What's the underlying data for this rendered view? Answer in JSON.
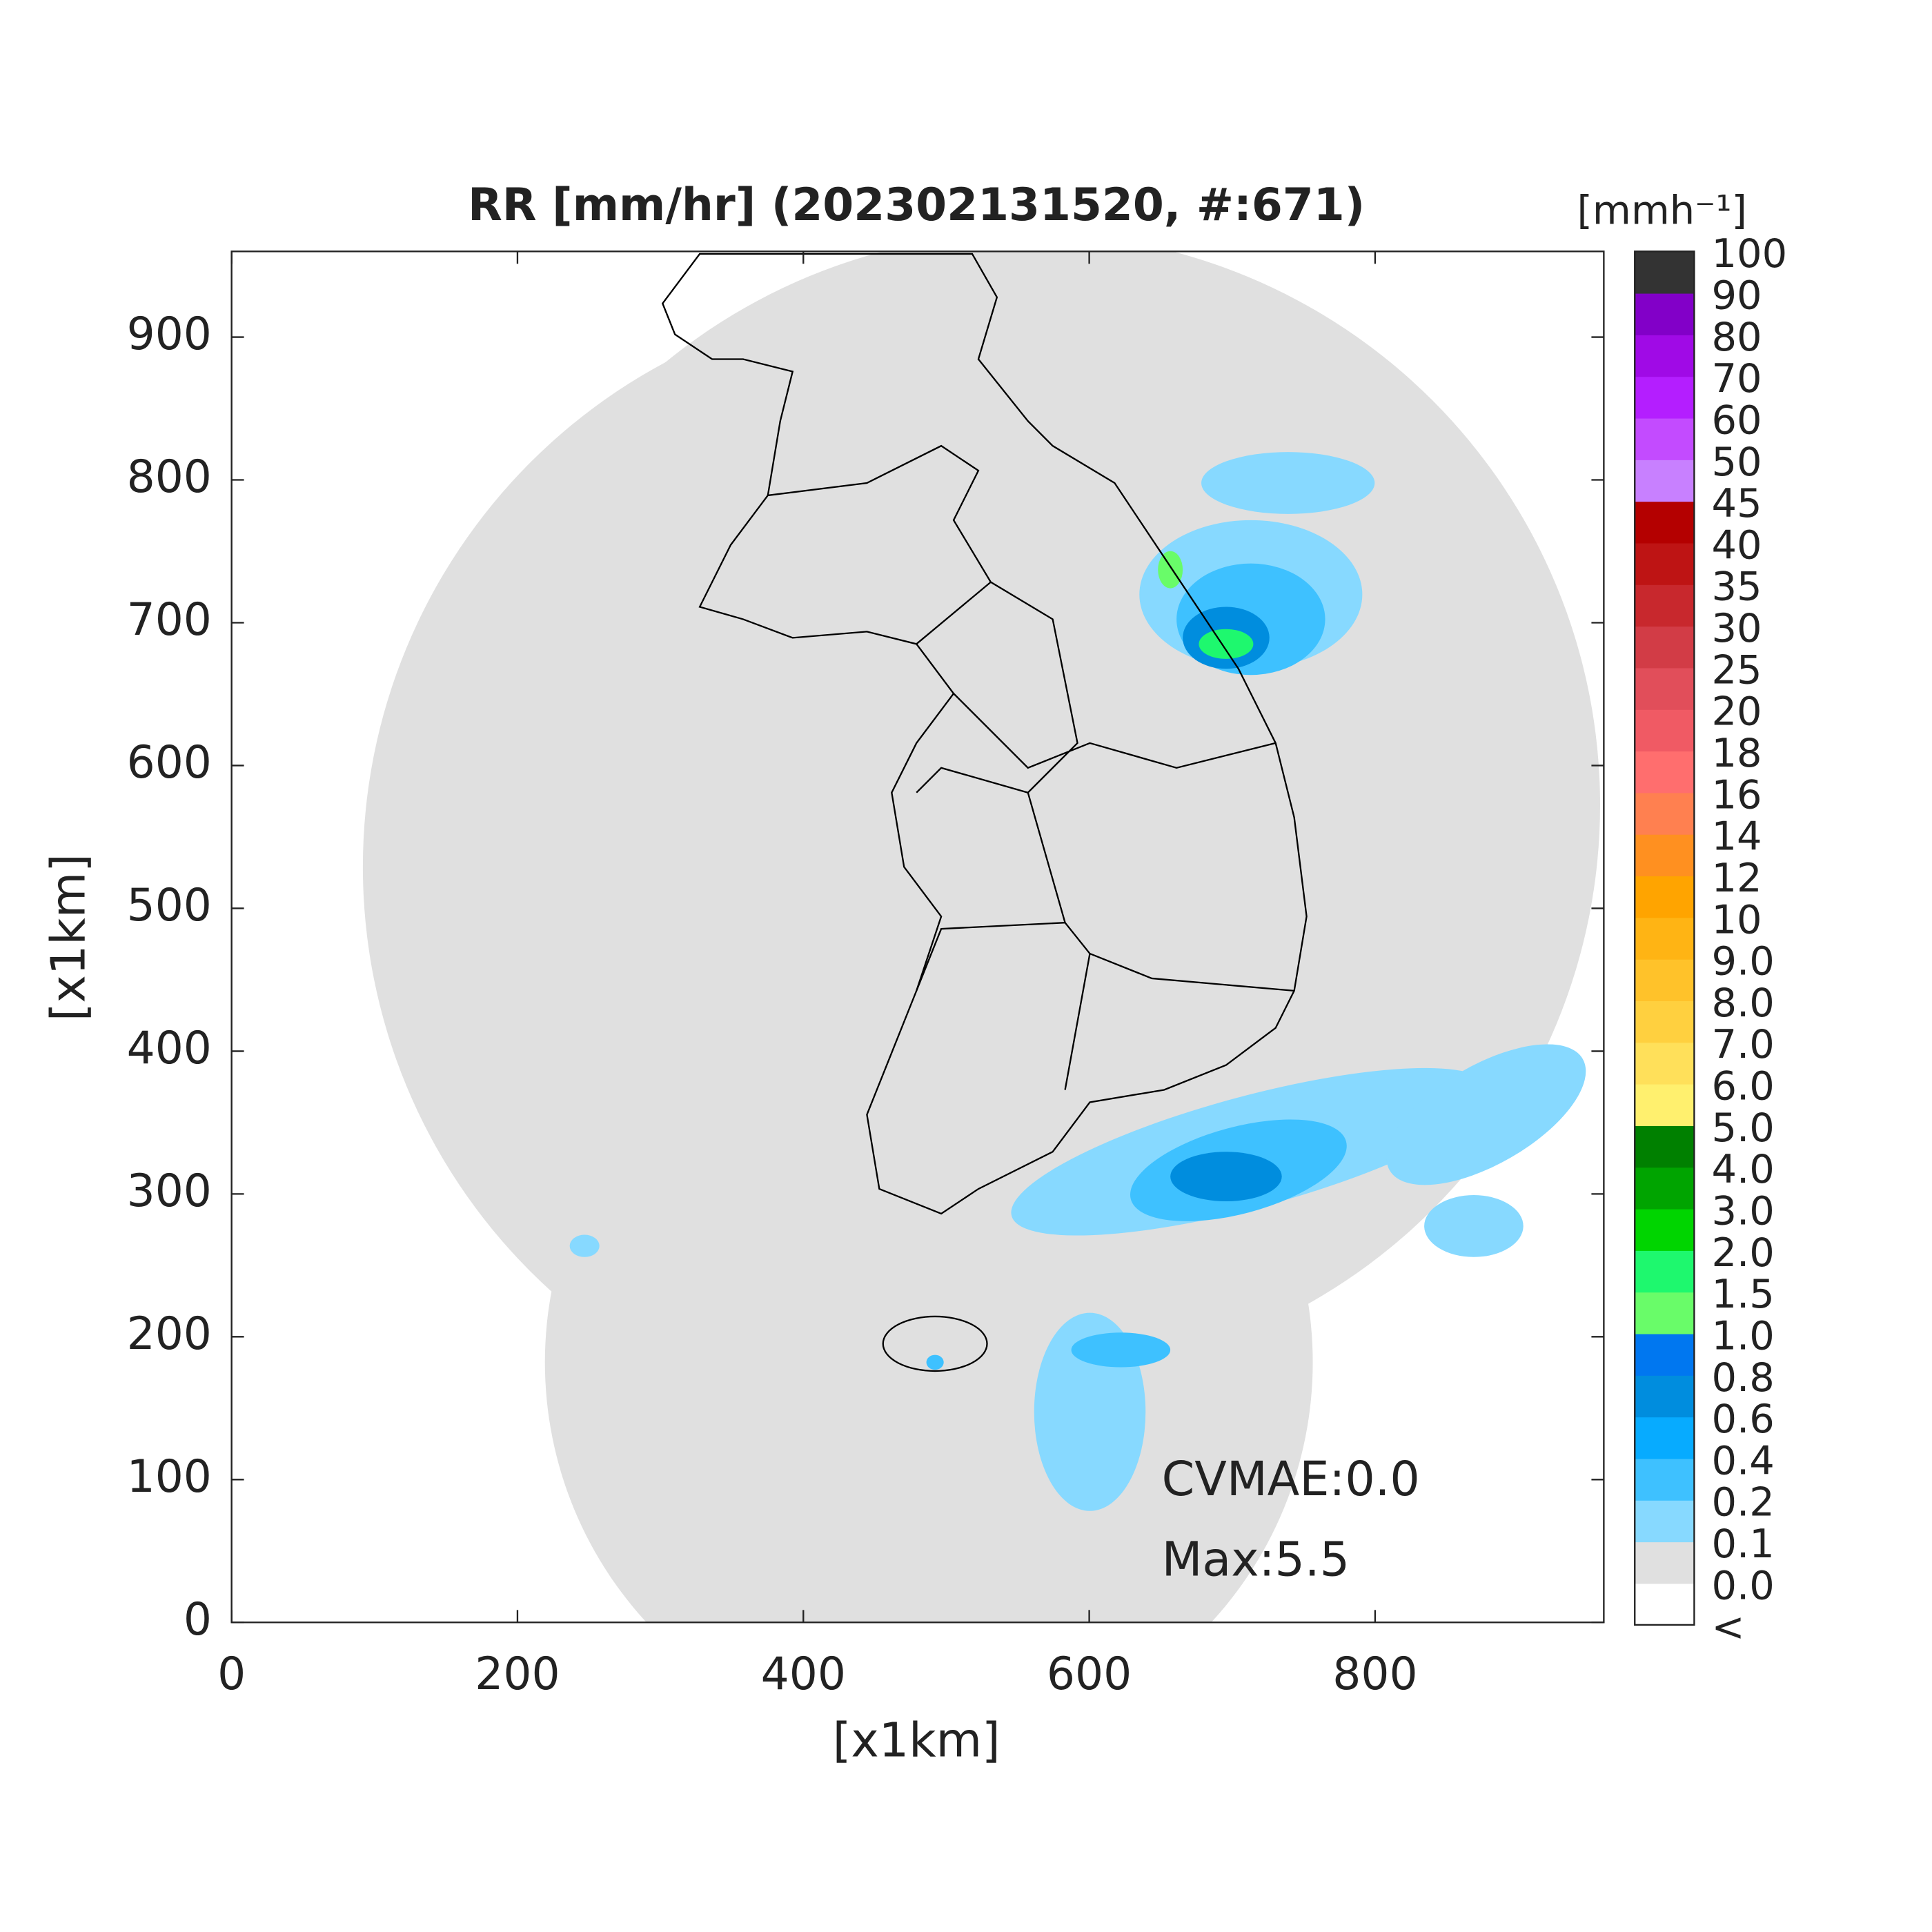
{
  "chart_data": {
    "type": "map",
    "title": "RR [mm/hr] (202302131520, #:671)",
    "xlabel": "[x1km]",
    "ylabel": "[x1km]",
    "xlim": [
      0,
      960
    ],
    "ylim": [
      0,
      960
    ],
    "xticks": [
      0,
      200,
      400,
      600,
      800
    ],
    "yticks": [
      0,
      100,
      200,
      300,
      400,
      500,
      600,
      700,
      800,
      900
    ],
    "annotations": [
      "CVMAE:0.0",
      "Max:5.5"
    ],
    "colorbar": {
      "unit": "[mmh⁻¹]",
      "labels": [
        "<",
        "0.0",
        "0.1",
        "0.2",
        "0.4",
        "0.6",
        "0.8",
        "1.0",
        "1.5",
        "2.0",
        "3.0",
        "4.0",
        "5.0",
        "6.0",
        "7.0",
        "8.0",
        "9.0",
        "10",
        "12",
        "14",
        "16",
        "18",
        "20",
        "25",
        "30",
        "35",
        "40",
        "45",
        "50",
        "60",
        "70",
        "80",
        "90",
        "100"
      ],
      "colors": [
        "#ffffff",
        "#e0e0e0",
        "#87d9ff",
        "#3ec1ff",
        "#07abff",
        "#008dde",
        "#0077f0",
        "#69fc69",
        "#1ef86e",
        "#00d500",
        "#00a400",
        "#008000",
        "#fff06e",
        "#ffe05a",
        "#ffd03f",
        "#ffc22a",
        "#ffb414",
        "#ffa400",
        "#ff9020",
        "#ff8050",
        "#ff6e6e",
        "#f05a64",
        "#e14e5a",
        "#d23c46",
        "#c8282d",
        "#be1414",
        "#b40000",
        "#c880ff",
        "#c34bff",
        "#b41eff",
        "#a00ae6",
        "#8200c8",
        "#333333"
      ]
    }
  }
}
